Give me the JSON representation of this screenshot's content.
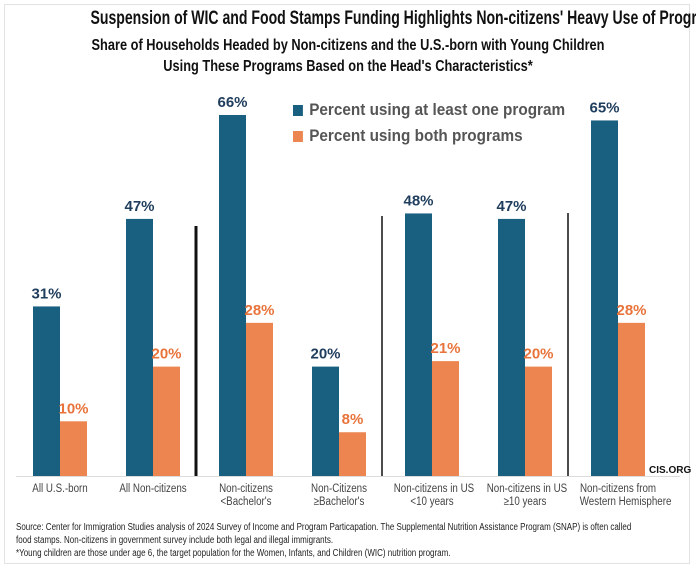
{
  "title": "Suspension of WIC and Food Stamps Funding Highlights Non-citizens' Heavy Use of Programs",
  "subtitle_line1": "Share of Households Headed by Non-citizens and the U.S.-born with Young Children",
  "subtitle_line2": "Using These Programs Based on the Head's Characteristics*",
  "watermark": "CIS.ORG",
  "footnotes": [
    "Source: Center for Immigration Studies analysis of 2024 Survey of Income and Program Particapation.  The Supplemental Nutrition Assistance Program (SNAP) is often called",
    "food stamps. Non-citizens in government survey include both legal and illegal immigrants.",
    "*Young children are those under age 6, the target population for the Women, Infants, and Children (WIC) nutrition program."
  ],
  "chart_data": {
    "type": "bar",
    "categories": [
      [
        "All U.S.-born"
      ],
      [
        "All Non-citizens"
      ],
      [
        "Non-citizens",
        "<Bachelor's"
      ],
      [
        "Non-Citizens",
        "≥Bachelor's"
      ],
      [
        "Non-citizens in US",
        "<10 years"
      ],
      [
        "Non-citizens in US",
        "≥10 years"
      ],
      [
        "Non-citizens from",
        "Western Hemisphere"
      ]
    ],
    "series": [
      {
        "name": "Percent using at least one program",
        "color": "#185f80",
        "values": [
          31,
          47,
          66,
          20,
          48,
          47,
          65
        ]
      },
      {
        "name": "Percent using both programs",
        "color": "#ec8550",
        "values": [
          10,
          20,
          28,
          8,
          21,
          20,
          28
        ]
      }
    ],
    "value_label_format": "{v}%",
    "label_colors": [
      "#1f3d5c",
      "#e8743b"
    ],
    "ylim": [
      0,
      70
    ],
    "grid": false,
    "legend": "top-center",
    "separators_after_categories": [
      1,
      3,
      5
    ]
  }
}
